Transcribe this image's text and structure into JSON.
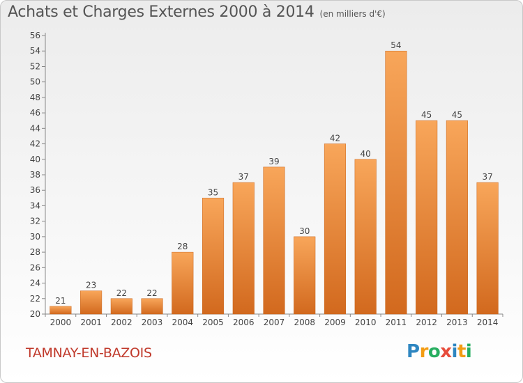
{
  "title": "Achats et Charges Externes 2000 à 2014",
  "unit": "(en milliers d'€)",
  "commune": "TAMNAY-EN-BAZOIS",
  "brand": {
    "letters": [
      "P",
      "r",
      "o",
      "x",
      "i",
      "t",
      "i"
    ],
    "colors": [
      "#2e86c1",
      "#f39c12",
      "#27ae60",
      "#e74c3c",
      "#2e86c1",
      "#f39c12",
      "#27ae60"
    ]
  },
  "colors": {
    "bar_top": "#f8a65a",
    "bar_bottom": "#d2691e",
    "title": "#555555",
    "commune": "#c0392b"
  },
  "chart_data": {
    "type": "bar",
    "categories": [
      "2000",
      "2001",
      "2002",
      "2003",
      "2004",
      "2005",
      "2006",
      "2007",
      "2008",
      "2009",
      "2010",
      "2011",
      "2012",
      "2013",
      "2014"
    ],
    "values": [
      21,
      23,
      22,
      22,
      28,
      35,
      37,
      39,
      30,
      42,
      40,
      54,
      45,
      45,
      37
    ],
    "ylim": [
      20,
      56
    ],
    "yticks": [
      20,
      22,
      24,
      26,
      28,
      30,
      32,
      34,
      36,
      38,
      40,
      42,
      44,
      46,
      48,
      50,
      52,
      54,
      56
    ],
    "grid": false,
    "data_labels": true
  }
}
